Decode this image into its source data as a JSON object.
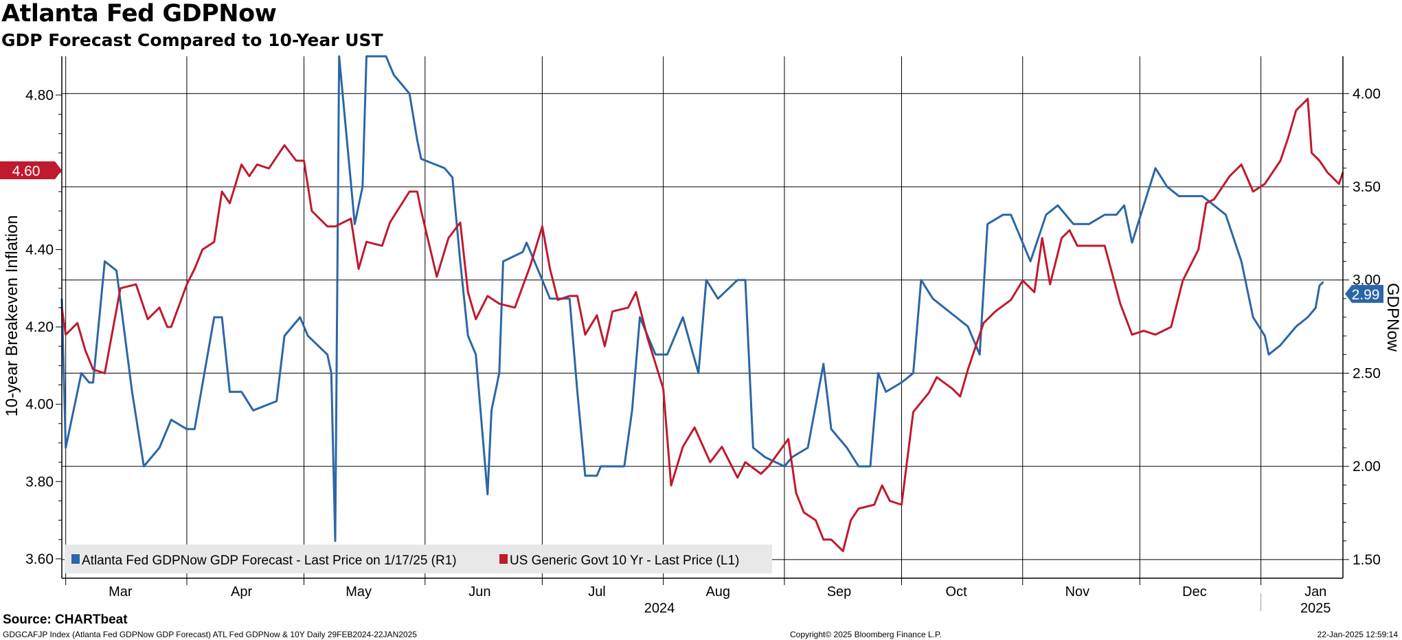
{
  "title": "Atlanta Fed GDPNow",
  "subtitle": "GDP Forecast Compared to 10-Year UST",
  "source": "Source: CHARTbeat",
  "footer": {
    "left": "GDGCAFJP Index (Atlanta Fed GDPNow GDP Forecast) ATL Fed GDPNow & 10Y  Daily 29FEB2024-22JAN2025",
    "center": "Copyright© 2025 Bloomberg Finance L.P.",
    "right": "22-Jan-2025 12:59:14"
  },
  "colors": {
    "gdpnow": "#2b66a6",
    "ust10y": "#bf1a2e",
    "legend_bg": "#e8e8e8",
    "grid": "#000000"
  },
  "chart_data": {
    "type": "line",
    "x_range": [
      "2024-02-29",
      "2025-01-22"
    ],
    "months": [
      {
        "label": "Mar",
        "date": "2024-03-15"
      },
      {
        "label": "Apr",
        "date": "2024-04-15"
      },
      {
        "label": "May",
        "date": "2024-05-15"
      },
      {
        "label": "Jun",
        "date": "2024-06-15"
      },
      {
        "label": "Jul",
        "date": "2024-07-15"
      },
      {
        "label": "Aug",
        "date": "2024-08-15"
      },
      {
        "label": "Sep",
        "date": "2024-09-15"
      },
      {
        "label": "Oct",
        "date": "2024-10-15"
      },
      {
        "label": "Nov",
        "date": "2024-11-15"
      },
      {
        "label": "Dec",
        "date": "2024-12-15"
      },
      {
        "label": "Jan",
        "date": "2025-01-15"
      }
    ],
    "month_boundaries": [
      "2024-03-01",
      "2024-04-01",
      "2024-05-01",
      "2024-06-01",
      "2024-07-01",
      "2024-08-01",
      "2024-09-01",
      "2024-10-01",
      "2024-11-01",
      "2024-12-01",
      "2025-01-01"
    ],
    "years": [
      {
        "label": "2024",
        "date": "2024-07-31"
      },
      {
        "label": "2025",
        "date": "2025-01-15"
      }
    ],
    "left_axis": {
      "title": "10-year Breakeven Inflation",
      "min": 3.55,
      "max": 4.9,
      "ticks": [
        "3.60",
        "3.80",
        "4.00",
        "4.20",
        "4.40",
        "4.60",
        "4.80"
      ]
    },
    "right_axis": {
      "title": "GDPNow",
      "min": 1.4,
      "max": 4.2,
      "ticks": [
        "1.50",
        "2.00",
        "2.50",
        "3.00",
        "3.50",
        "4.00"
      ]
    },
    "last_tags": {
      "left": "4.60",
      "right": "2.99"
    },
    "series": [
      {
        "name": "Atlanta Fed GDPNow GDP Forecast - Last Price on 1/17/25 (R1)",
        "axis": "right",
        "color": "#2b66a6",
        "points": [
          [
            "2024-02-29",
            2.9
          ],
          [
            "2024-03-01",
            2.1
          ],
          [
            "2024-03-05",
            2.5
          ],
          [
            "2024-03-07",
            2.45
          ],
          [
            "2024-03-08",
            2.45
          ],
          [
            "2024-03-11",
            3.1
          ],
          [
            "2024-03-14",
            3.05
          ],
          [
            "2024-03-18",
            2.4
          ],
          [
            "2024-03-21",
            2.0
          ],
          [
            "2024-03-25",
            2.1
          ],
          [
            "2024-03-28",
            2.25
          ],
          [
            "2024-04-01",
            2.2
          ],
          [
            "2024-04-03",
            2.2
          ],
          [
            "2024-04-08",
            2.8
          ],
          [
            "2024-04-10",
            2.8
          ],
          [
            "2024-04-12",
            2.4
          ],
          [
            "2024-04-15",
            2.4
          ],
          [
            "2024-04-18",
            2.3
          ],
          [
            "2024-04-24",
            2.35
          ],
          [
            "2024-04-26",
            2.7
          ],
          [
            "2024-04-30",
            2.8
          ],
          [
            "2024-05-02",
            2.7
          ],
          [
            "2024-05-07",
            2.6
          ],
          [
            "2024-05-08",
            2.5
          ],
          [
            "2024-05-09",
            1.6
          ],
          [
            "2024-05-10",
            4.2
          ],
          [
            "2024-05-14",
            3.3
          ],
          [
            "2024-05-16",
            3.5
          ],
          [
            "2024-05-17",
            4.2
          ],
          [
            "2024-05-22",
            4.2
          ],
          [
            "2024-05-24",
            4.1
          ],
          [
            "2024-05-28",
            4.0
          ],
          [
            "2024-05-30",
            3.75
          ],
          [
            "2024-05-31",
            3.65
          ],
          [
            "2024-06-06",
            3.6
          ],
          [
            "2024-06-08",
            3.55
          ],
          [
            "2024-06-10",
            3.1
          ],
          [
            "2024-06-12",
            2.7
          ],
          [
            "2024-06-14",
            2.6
          ],
          [
            "2024-06-17",
            1.85
          ],
          [
            "2024-06-18",
            2.3
          ],
          [
            "2024-06-20",
            2.5
          ],
          [
            "2024-06-21",
            3.1
          ],
          [
            "2024-06-26",
            3.15
          ],
          [
            "2024-06-27",
            3.2
          ],
          [
            "2024-07-01",
            3.0
          ],
          [
            "2024-07-03",
            2.9
          ],
          [
            "2024-07-08",
            2.9
          ],
          [
            "2024-07-10",
            2.4
          ],
          [
            "2024-07-12",
            1.95
          ],
          [
            "2024-07-15",
            1.95
          ],
          [
            "2024-07-16",
            2.0
          ],
          [
            "2024-07-18",
            2.0
          ],
          [
            "2024-07-22",
            2.0
          ],
          [
            "2024-07-24",
            2.3
          ],
          [
            "2024-07-26",
            2.8
          ],
          [
            "2024-07-30",
            2.6
          ],
          [
            "2024-08-02",
            2.6
          ],
          [
            "2024-08-06",
            2.8
          ],
          [
            "2024-08-08",
            2.65
          ],
          [
            "2024-08-10",
            2.5
          ],
          [
            "2024-08-12",
            3.0
          ],
          [
            "2024-08-15",
            2.9
          ],
          [
            "2024-08-20",
            3.0
          ],
          [
            "2024-08-22",
            3.0
          ],
          [
            "2024-08-24",
            2.1
          ],
          [
            "2024-08-27",
            2.05
          ],
          [
            "2024-09-01",
            2.0
          ],
          [
            "2024-09-03",
            2.05
          ],
          [
            "2024-09-07",
            2.1
          ],
          [
            "2024-09-11",
            2.55
          ],
          [
            "2024-09-13",
            2.2
          ],
          [
            "2024-09-17",
            2.1
          ],
          [
            "2024-09-20",
            2.0
          ],
          [
            "2024-09-23",
            2.0
          ],
          [
            "2024-09-25",
            2.5
          ],
          [
            "2024-09-27",
            2.4
          ],
          [
            "2024-10-01",
            2.45
          ],
          [
            "2024-10-04",
            2.5
          ],
          [
            "2024-10-06",
            3.0
          ],
          [
            "2024-10-09",
            2.9
          ],
          [
            "2024-10-15",
            2.8
          ],
          [
            "2024-10-18",
            2.75
          ],
          [
            "2024-10-21",
            2.6
          ],
          [
            "2024-10-23",
            3.3
          ],
          [
            "2024-10-27",
            3.35
          ],
          [
            "2024-10-29",
            3.35
          ],
          [
            "2024-11-03",
            3.1
          ],
          [
            "2024-11-07",
            3.35
          ],
          [
            "2024-11-10",
            3.4
          ],
          [
            "2024-11-14",
            3.3
          ],
          [
            "2024-11-18",
            3.3
          ],
          [
            "2024-11-22",
            3.35
          ],
          [
            "2024-11-25",
            3.35
          ],
          [
            "2024-11-27",
            3.4
          ],
          [
            "2024-11-29",
            3.2
          ],
          [
            "2024-12-02",
            3.4
          ],
          [
            "2024-12-05",
            3.6
          ],
          [
            "2024-12-08",
            3.5
          ],
          [
            "2024-12-11",
            3.45
          ],
          [
            "2024-12-14",
            3.45
          ],
          [
            "2024-12-17",
            3.45
          ],
          [
            "2024-12-20",
            3.4
          ],
          [
            "2024-12-23",
            3.35
          ],
          [
            "2024-12-27",
            3.1
          ],
          [
            "2024-12-30",
            2.8
          ],
          [
            "2025-01-02",
            2.7
          ],
          [
            "2025-01-03",
            2.6
          ],
          [
            "2025-01-06",
            2.65
          ],
          [
            "2025-01-08",
            2.7
          ],
          [
            "2025-01-10",
            2.75
          ],
          [
            "2025-01-13",
            2.8
          ],
          [
            "2025-01-15",
            2.85
          ],
          [
            "2025-01-16",
            2.97
          ],
          [
            "2025-01-17",
            2.99
          ]
        ]
      },
      {
        "name": "US Generic Govt 10 Yr - Last Price (L1)",
        "axis": "left",
        "color": "#bf1a2e",
        "points": [
          [
            "2024-02-29",
            4.25
          ],
          [
            "2024-03-01",
            4.18
          ],
          [
            "2024-03-04",
            4.21
          ],
          [
            "2024-03-06",
            4.14
          ],
          [
            "2024-03-08",
            4.09
          ],
          [
            "2024-03-11",
            4.08
          ],
          [
            "2024-03-13",
            4.19
          ],
          [
            "2024-03-15",
            4.3
          ],
          [
            "2024-03-19",
            4.31
          ],
          [
            "2024-03-22",
            4.22
          ],
          [
            "2024-03-25",
            4.25
          ],
          [
            "2024-03-27",
            4.2
          ],
          [
            "2024-03-28",
            4.2
          ],
          [
            "2024-04-01",
            4.31
          ],
          [
            "2024-04-03",
            4.35
          ],
          [
            "2024-04-05",
            4.4
          ],
          [
            "2024-04-08",
            4.42
          ],
          [
            "2024-04-10",
            4.55
          ],
          [
            "2024-04-12",
            4.52
          ],
          [
            "2024-04-15",
            4.62
          ],
          [
            "2024-04-17",
            4.59
          ],
          [
            "2024-04-19",
            4.62
          ],
          [
            "2024-04-22",
            4.61
          ],
          [
            "2024-04-24",
            4.64
          ],
          [
            "2024-04-26",
            4.67
          ],
          [
            "2024-04-29",
            4.63
          ],
          [
            "2024-05-01",
            4.63
          ],
          [
            "2024-05-03",
            4.5
          ],
          [
            "2024-05-07",
            4.46
          ],
          [
            "2024-05-09",
            4.46
          ],
          [
            "2024-05-13",
            4.48
          ],
          [
            "2024-05-15",
            4.35
          ],
          [
            "2024-05-17",
            4.42
          ],
          [
            "2024-05-21",
            4.41
          ],
          [
            "2024-05-23",
            4.47
          ],
          [
            "2024-05-28",
            4.55
          ],
          [
            "2024-05-30",
            4.55
          ],
          [
            "2024-05-31",
            4.5
          ],
          [
            "2024-06-04",
            4.33
          ],
          [
            "2024-06-07",
            4.43
          ],
          [
            "2024-06-10",
            4.47
          ],
          [
            "2024-06-12",
            4.29
          ],
          [
            "2024-06-14",
            4.22
          ],
          [
            "2024-06-17",
            4.28
          ],
          [
            "2024-06-20",
            4.26
          ],
          [
            "2024-06-24",
            4.25
          ],
          [
            "2024-06-28",
            4.36
          ],
          [
            "2024-07-01",
            4.46
          ],
          [
            "2024-07-03",
            4.35
          ],
          [
            "2024-07-05",
            4.27
          ],
          [
            "2024-07-08",
            4.28
          ],
          [
            "2024-07-10",
            4.28
          ],
          [
            "2024-07-12",
            4.18
          ],
          [
            "2024-07-15",
            4.23
          ],
          [
            "2024-07-17",
            4.15
          ],
          [
            "2024-07-19",
            4.24
          ],
          [
            "2024-07-23",
            4.25
          ],
          [
            "2024-07-25",
            4.29
          ],
          [
            "2024-07-28",
            4.17
          ],
          [
            "2024-08-01",
            4.04
          ],
          [
            "2024-08-03",
            3.79
          ],
          [
            "2024-08-06",
            3.89
          ],
          [
            "2024-08-09",
            3.94
          ],
          [
            "2024-08-13",
            3.85
          ],
          [
            "2024-08-16",
            3.89
          ],
          [
            "2024-08-20",
            3.81
          ],
          [
            "2024-08-22",
            3.85
          ],
          [
            "2024-08-26",
            3.82
          ],
          [
            "2024-08-28",
            3.84
          ],
          [
            "2024-09-02",
            3.91
          ],
          [
            "2024-09-04",
            3.77
          ],
          [
            "2024-09-06",
            3.72
          ],
          [
            "2024-09-09",
            3.7
          ],
          [
            "2024-09-11",
            3.65
          ],
          [
            "2024-09-13",
            3.65
          ],
          [
            "2024-09-16",
            3.62
          ],
          [
            "2024-09-18",
            3.7
          ],
          [
            "2024-09-20",
            3.73
          ],
          [
            "2024-09-24",
            3.74
          ],
          [
            "2024-09-26",
            3.79
          ],
          [
            "2024-09-28",
            3.75
          ],
          [
            "2024-10-01",
            3.74
          ],
          [
            "2024-10-04",
            3.98
          ],
          [
            "2024-10-08",
            4.03
          ],
          [
            "2024-10-10",
            4.07
          ],
          [
            "2024-10-14",
            4.04
          ],
          [
            "2024-10-16",
            4.02
          ],
          [
            "2024-10-18",
            4.09
          ],
          [
            "2024-10-22",
            4.21
          ],
          [
            "2024-10-25",
            4.24
          ],
          [
            "2024-10-29",
            4.27
          ],
          [
            "2024-11-01",
            4.32
          ],
          [
            "2024-11-04",
            4.29
          ],
          [
            "2024-11-06",
            4.43
          ],
          [
            "2024-11-08",
            4.31
          ],
          [
            "2024-11-11",
            4.43
          ],
          [
            "2024-11-13",
            4.45
          ],
          [
            "2024-11-15",
            4.41
          ],
          [
            "2024-11-19",
            4.41
          ],
          [
            "2024-11-22",
            4.41
          ],
          [
            "2024-11-26",
            4.26
          ],
          [
            "2024-11-29",
            4.18
          ],
          [
            "2024-12-02",
            4.19
          ],
          [
            "2024-12-05",
            4.18
          ],
          [
            "2024-12-09",
            4.2
          ],
          [
            "2024-12-12",
            4.32
          ],
          [
            "2024-12-16",
            4.4
          ],
          [
            "2024-12-18",
            4.52
          ],
          [
            "2024-12-20",
            4.53
          ],
          [
            "2024-12-24",
            4.59
          ],
          [
            "2024-12-27",
            4.62
          ],
          [
            "2024-12-30",
            4.55
          ],
          [
            "2025-01-02",
            4.57
          ],
          [
            "2025-01-06",
            4.63
          ],
          [
            "2025-01-08",
            4.69
          ],
          [
            "2025-01-10",
            4.76
          ],
          [
            "2025-01-13",
            4.79
          ],
          [
            "2025-01-14",
            4.65
          ],
          [
            "2025-01-16",
            4.63
          ],
          [
            "2025-01-18",
            4.6
          ],
          [
            "2025-01-21",
            4.57
          ],
          [
            "2025-01-22",
            4.6
          ]
        ]
      }
    ]
  }
}
